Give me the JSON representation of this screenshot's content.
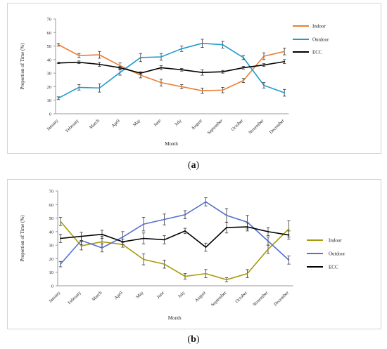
{
  "chart_data": [
    {
      "type": "line",
      "panel_label": "a",
      "categories": [
        "January",
        "February",
        "March",
        "April",
        "May",
        "June",
        "July",
        "August",
        "September",
        "October",
        "November",
        "December"
      ],
      "ylabel": "Proportion of Time (%)",
      "xlabel": "Month",
      "ylim": [
        0,
        70
      ],
      "yticks": [
        0,
        10,
        20,
        30,
        40,
        50,
        60,
        70
      ],
      "legend_position": "right",
      "series": [
        {
          "name": "Indoor",
          "color": "#ED7D31",
          "values": [
            51,
            43,
            43.5,
            35.5,
            28.5,
            23,
            20,
            17,
            17.5,
            24.5,
            42.5,
            46
          ],
          "errors": [
            1,
            1.5,
            2.5,
            2,
            2,
            2.5,
            1.5,
            2,
            2,
            1.5,
            2.5,
            2.5
          ]
        },
        {
          "name": "Outdoor",
          "color": "#1F9BCF",
          "values": [
            11.5,
            19.5,
            19,
            30.5,
            41.5,
            42,
            48,
            52,
            51,
            41.5,
            21,
            15.5
          ],
          "errors": [
            1,
            2,
            3,
            2,
            3,
            2.5,
            2,
            3,
            2.5,
            1.5,
            2,
            2.5
          ]
        },
        {
          "name": "ECC",
          "color": "#000000",
          "values": [
            37.5,
            38,
            36.5,
            34,
            30,
            34,
            32.5,
            30.5,
            31,
            34,
            36,
            38.5
          ],
          "errors": [
            0.5,
            1,
            1.5,
            1,
            1,
            1.5,
            1,
            2,
            1,
            1,
            1,
            1.5
          ]
        }
      ]
    },
    {
      "type": "line",
      "panel_label": "b",
      "categories": [
        "January",
        "February",
        "March",
        "April",
        "May",
        "June",
        "July",
        "August",
        "September",
        "October",
        "November",
        "December"
      ],
      "ylabel": "Proportion of Time (%)",
      "xlabel": "Month",
      "ylim": [
        0,
        70
      ],
      "yticks": [
        0,
        10,
        20,
        30,
        40,
        50,
        60,
        70
      ],
      "legend_position": "right",
      "series": [
        {
          "name": "Indoor",
          "color": "#A89A0A",
          "values": [
            47.5,
            29.5,
            32.5,
            30.5,
            19.5,
            16,
            7,
            9,
            4.5,
            9,
            27,
            42
          ],
          "errors": [
            3,
            3,
            4,
            2,
            4,
            3,
            2,
            3,
            1.5,
            3,
            3,
            6
          ]
        },
        {
          "name": "Outdoor",
          "color": "#5470D0",
          "values": [
            16,
            33.5,
            28,
            36,
            45.5,
            49,
            52.5,
            62,
            52,
            47,
            33,
            19
          ],
          "errors": [
            2,
            3,
            3,
            4,
            5,
            4,
            3,
            3,
            5,
            5,
            3,
            3
          ]
        },
        {
          "name": "ECC",
          "color": "#000000",
          "values": [
            35,
            36.5,
            38,
            32.5,
            35,
            34,
            40.5,
            28.5,
            43,
            43.5,
            40,
            37.5
          ],
          "errors": [
            3,
            3,
            3,
            2,
            4,
            3,
            2,
            3,
            4,
            3,
            3,
            3
          ]
        }
      ]
    }
  ],
  "captions": {
    "a": {
      "open": "(",
      "label": "a",
      "close": ")"
    },
    "b": {
      "open": "(",
      "label": "b",
      "close": ")"
    }
  }
}
